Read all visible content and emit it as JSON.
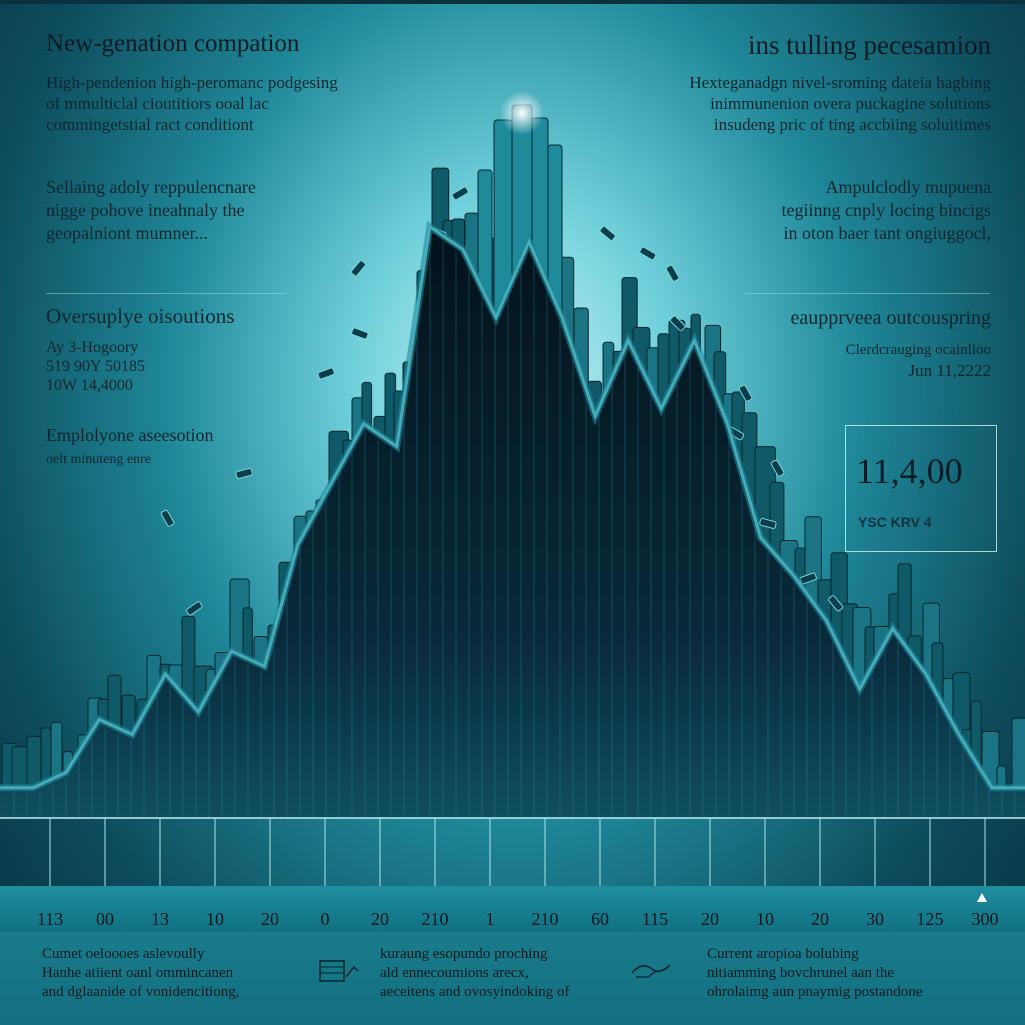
{
  "header": {
    "left_title": "New-genation compation",
    "right_title": "ins tulling pecesamion"
  },
  "left_panel": {
    "paragraph_1": [
      "High-pendenion high-peromanc podgesing",
      "of mmulticlal cioutitiors ooal lac",
      "commingetstial ract conditiont"
    ],
    "paragraph_2": [
      "Sellaing adoly reppulencnare",
      "nigge pohove ineahnaly the",
      "geopalniont mumner..."
    ],
    "section_title": "Oversuplye oisoutions",
    "stats": [
      "Ay 3-Hogoory",
      "519 90Y 50185",
      "10W 14,4000"
    ],
    "sub_title": "Emplolyone aseesotion",
    "sub_text": "oelt minuteng enre"
  },
  "right_panel": {
    "paragraph_1": [
      "Hexteganadgn nivel-sroming dateia hagbing",
      "inimmunenion overa puckagine solutions",
      "insudeng pric of ting accbiing soluitimes"
    ],
    "paragraph_2": [
      "Ampulclodly mupuena",
      "tegiinng cnply locing bincigs",
      "in oton baer tant ongiuggocl,"
    ],
    "section_title": "eaupprveea outcouspring",
    "sub_text": "Clerdcrauging ocainlioo",
    "date": "Jun 11,2222",
    "big_value": "11,4,00",
    "big_code": "YSC KRV 4"
  },
  "chart_data": {
    "type": "area",
    "title": "",
    "xlabel": "",
    "ylabel": "",
    "x_tick_labels": [
      "113",
      "00",
      "13",
      "10",
      "20",
      "0",
      "20",
      "210",
      "1",
      "210",
      "60",
      "115",
      "20",
      "10",
      "20",
      "30",
      "125",
      "300"
    ],
    "series": [
      {
        "values": [
          4,
          4,
          6,
          13,
          11,
          19,
          14,
          22,
          20,
          36,
          44,
          52,
          49,
          78,
          75,
          66,
          76,
          66,
          53,
          63,
          54,
          63,
          52,
          37,
          32,
          26,
          17,
          25,
          19,
          11,
          4,
          4
        ]
      }
    ],
    "ylim": [
      0,
      100
    ],
    "grid": false,
    "legend": "none"
  },
  "footer": {
    "col_1": [
      "Cumet oeloooes aslevoully",
      "Hanhe atiient oanl ommincanen",
      "and dglaanide of vonidencitiong,"
    ],
    "col_2": [
      "kuraung esopundo proching",
      "ald ennecoumions arecx,",
      "aeceitens and ovosyindoking of"
    ],
    "col_3": [
      "Current aropioa bolubing",
      "nitiamming bovchrunel aan the",
      "ohrolaimg aun pnaymig postandone"
    ]
  },
  "colors": {
    "teal": "#1e8b9b",
    "dark_navy": "#04131d",
    "glow": "#e6fbfd"
  }
}
